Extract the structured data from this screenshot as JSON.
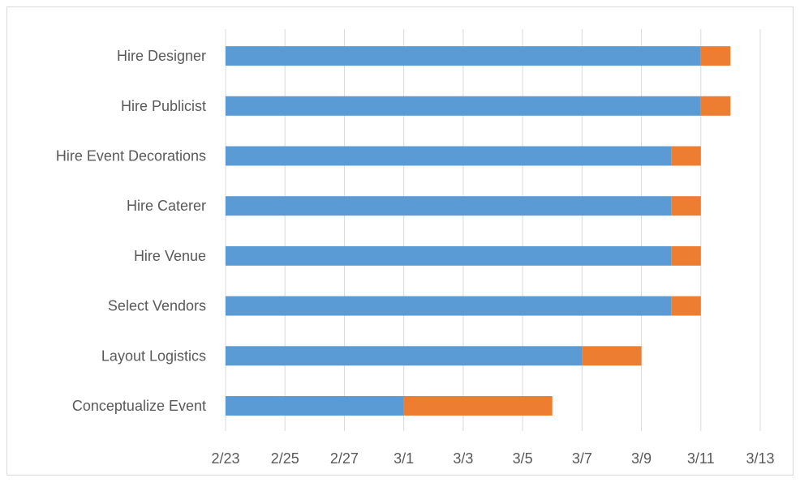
{
  "chart_data": {
    "type": "bar",
    "orientation": "horizontal",
    "stacked": true,
    "categories": [
      "Conceptualize Event",
      "Layout Logistics",
      "Select Vendors",
      "Hire Venue",
      "Hire Caterer",
      "Hire Event Decorations",
      "Hire Publicist",
      "Hire Designer"
    ],
    "series": [
      {
        "color": "#5b9bd5",
        "values": [
          "3/1",
          "3/7",
          "3/10",
          "3/10",
          "3/10",
          "3/10",
          "3/11",
          "3/11"
        ]
      },
      {
        "color": "#ed7d31",
        "values": [
          5,
          2,
          1,
          1,
          1,
          1,
          1,
          1
        ]
      }
    ],
    "x_axis": {
      "min": "2/23",
      "max": "3/13",
      "ticks": [
        "2/23",
        "2/25",
        "2/27",
        "3/1",
        "3/3",
        "3/5",
        "3/7",
        "3/9",
        "3/11",
        "3/13"
      ],
      "year": 2015
    },
    "grid": true,
    "legend": "none"
  }
}
